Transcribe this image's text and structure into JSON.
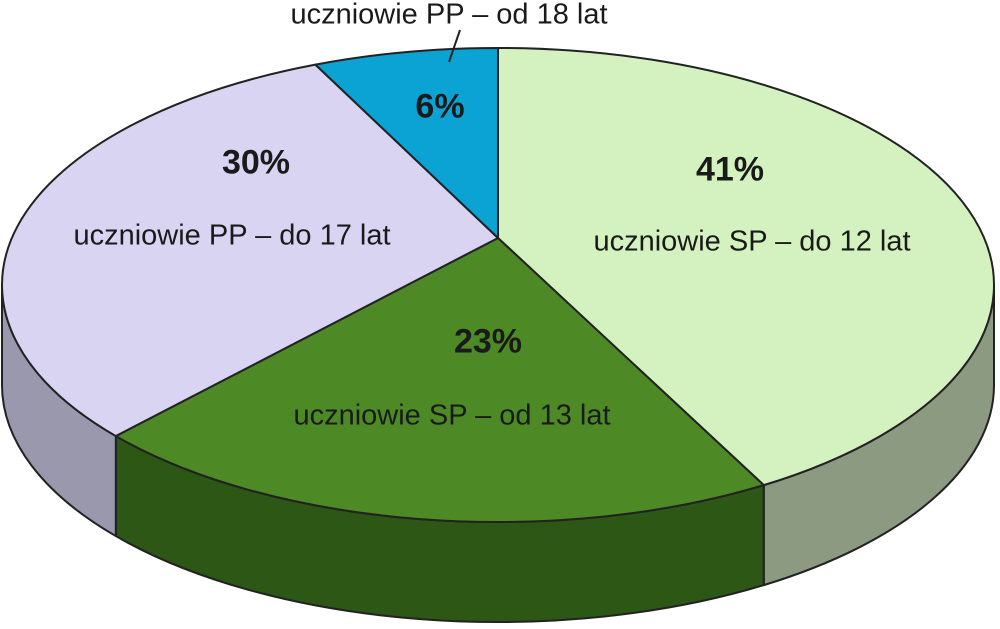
{
  "chart_data": {
    "type": "pie",
    "style": "3d",
    "title": "",
    "slices": [
      {
        "label": "uczniowie SP – do 12 lat",
        "value": 41,
        "value_label": "41%",
        "color": "#d3f2bf",
        "side_color": "#8b9a80"
      },
      {
        "label": "uczniowie SP – od 13 lat",
        "value": 23,
        "value_label": "23%",
        "color": "#4d8a26",
        "side_color": "#2c5714"
      },
      {
        "label": "uczniowie PP – do 17 lat",
        "value": 30,
        "value_label": "30%",
        "color": "#d8d4f1",
        "side_color": "#9a98ad"
      },
      {
        "label": "uczniowie PP – od 18 lat",
        "value": 6,
        "value_label": "6%",
        "color": "#0aa3d4",
        "side_color": "#06729a"
      }
    ]
  }
}
